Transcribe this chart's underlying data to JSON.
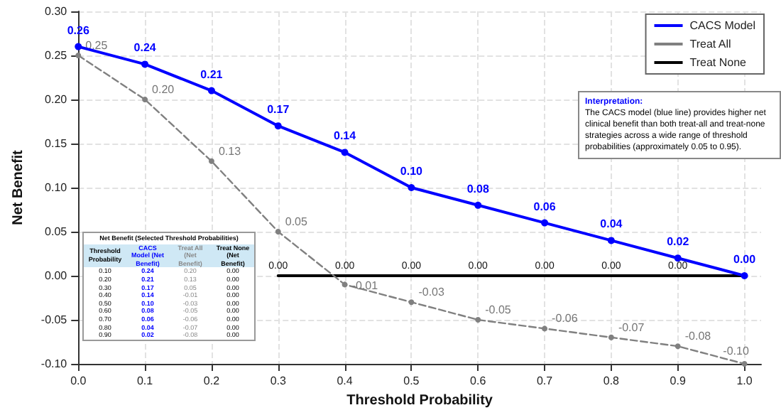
{
  "chart_data": {
    "type": "line",
    "xlabel": "Threshold Probability",
    "ylabel": "Net Benefit",
    "x": [
      0.0,
      0.1,
      0.2,
      0.3,
      0.4,
      0.5,
      0.6,
      0.7,
      0.8,
      0.9,
      1.0
    ],
    "series": [
      {
        "name": "CACS Model",
        "color": "#0000ff",
        "line_style": "solid",
        "marker": "circle",
        "values": [
          0.26,
          0.24,
          0.21,
          0.17,
          0.14,
          0.1,
          0.08,
          0.06,
          0.04,
          0.02,
          0.0
        ],
        "value_labels": [
          "0.26",
          "0.24",
          "0.21",
          "0.17",
          "0.14",
          "0.10",
          "0.08",
          "0.06",
          "0.04",
          "0.02",
          "0.00"
        ]
      },
      {
        "name": "Treat All",
        "color": "#808080",
        "line_style": "dashed",
        "marker": "circle",
        "values": [
          0.25,
          0.2,
          0.13,
          0.05,
          -0.01,
          -0.03,
          -0.05,
          -0.06,
          -0.07,
          -0.08,
          -0.1
        ],
        "value_labels": [
          "0.25",
          "0.20",
          "0.13",
          "0.05",
          "-0.01",
          "-0.03",
          "-0.05",
          "-0.06",
          "-0.07",
          "-0.08",
          "-0.10"
        ]
      },
      {
        "name": "Treat None",
        "color": "#000000",
        "line_style": "solid",
        "marker": "none",
        "values": [
          null,
          null,
          null,
          0.0,
          0.0,
          0.0,
          0.0,
          0.0,
          0.0,
          0.0,
          0.0
        ],
        "value_labels": [
          null,
          null,
          null,
          "0.00",
          "0.00",
          "0.00",
          "0.00",
          "0.00",
          "0.00",
          "0.00",
          null
        ]
      }
    ],
    "xlim": [
      0,
      1.025
    ],
    "xticks": [
      {
        "value": 0,
        "label": "0.0"
      },
      0.1,
      0.2,
      0.3,
      0.4,
      0.5,
      0.6,
      0.7,
      0.8,
      0.9,
      {
        "value": 1,
        "label": "1.0"
      }
    ],
    "ylim": [
      -0.1,
      0.3
    ],
    "yticks": [
      {
        "value": -0.1,
        "label": "-0.10"
      },
      -0.05,
      {
        "value": 0,
        "label": "0.00"
      },
      0.05,
      {
        "value": 0.1,
        "label": "0.10"
      },
      0.15,
      {
        "value": 0.2,
        "label": "0.20"
      },
      0.25,
      {
        "value": 0.3,
        "label": "0.30"
      }
    ],
    "grid": true,
    "legend": "top right",
    "annotations": [
      "Interpretation:",
      "The CACS model (blue line) provides higher net clinical benefit than both treat-all and treat-none strategies across a wide range of threshold probabilities (approximately 0.05 to 0.95).",
      "Net Benefit (Selected Threshold Probabilities)",
      "Threshold Probability",
      "CACS Model (Net Benefit)",
      "Treat All (Net Benefit)",
      "Treat None (Net Benefit)",
      "0.10",
      "0.24",
      "0.20",
      "0.00",
      "0.20",
      "0.21",
      "0.13",
      "0.00",
      "0.30",
      "0.17",
      "0.05",
      "0.00",
      "0.40",
      "0.14",
      "-0.01",
      "0.00",
      "0.50",
      "0.10",
      "-0.03",
      "0.00",
      "0.60",
      "0.08",
      "-0.05",
      "0.00",
      "0.70",
      "0.06",
      "-0.06",
      "0.00",
      "0.80",
      "0.04",
      "-0.07",
      "0.00",
      "0.90",
      "0.02",
      "-0.08",
      "0.00"
    ]
  }
}
